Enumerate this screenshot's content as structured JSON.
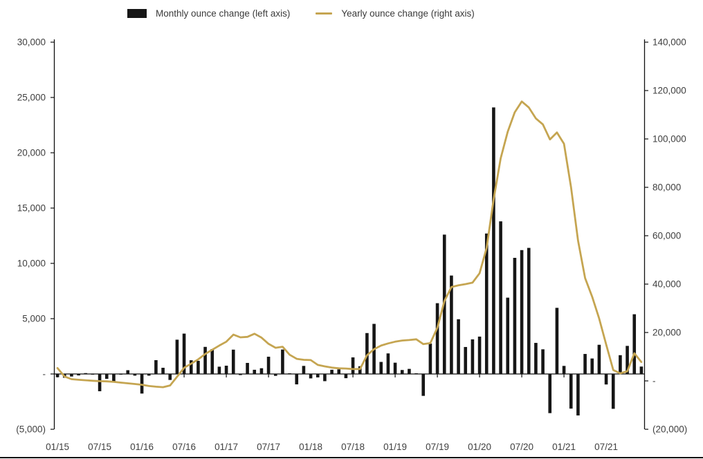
{
  "legend": {
    "monthly_label": "Monthly ounce change (left axis)",
    "yearly_label": "Yearly ounce change (right axis)"
  },
  "colors": {
    "bar": "#161616",
    "line": "#C5A551",
    "axis": "#0f0f0f",
    "text": "#3f3f3f",
    "background": "#ffffff"
  },
  "chart_data": {
    "type": "bar+line combo",
    "title": "",
    "grid": "off",
    "legend_position": "top",
    "categories": [
      "01/15",
      "02/15",
      "03/15",
      "04/15",
      "05/15",
      "06/15",
      "07/15",
      "08/15",
      "09/15",
      "10/15",
      "11/15",
      "12/15",
      "01/16",
      "02/16",
      "03/16",
      "04/16",
      "05/16",
      "06/16",
      "07/16",
      "08/16",
      "09/16",
      "10/16",
      "11/16",
      "12/16",
      "01/17",
      "02/17",
      "03/17",
      "04/17",
      "05/17",
      "06/17",
      "07/17",
      "08/17",
      "09/17",
      "10/17",
      "11/17",
      "12/17",
      "01/18",
      "02/18",
      "03/18",
      "04/18",
      "05/18",
      "06/18",
      "07/18",
      "08/18",
      "09/18",
      "10/18",
      "11/18",
      "12/18",
      "01/19",
      "02/19",
      "03/19",
      "04/19",
      "05/19",
      "06/19",
      "07/19",
      "08/19",
      "09/19",
      "10/19",
      "11/19",
      "12/19",
      "01/20",
      "02/20",
      "03/20",
      "04/20",
      "05/20",
      "06/20",
      "07/20",
      "08/20",
      "09/20",
      "10/20",
      "11/20",
      "12/20",
      "01/21",
      "02/21",
      "03/21",
      "04/21",
      "05/21",
      "06/21",
      "07/21",
      "08/21",
      "09/21",
      "10/21",
      "11/21",
      "12/21"
    ],
    "series": [
      {
        "name": "Monthly ounce change (left axis)",
        "type": "bar",
        "axis": "left",
        "values": [
          -290,
          -340,
          -230,
          -130,
          80,
          -60,
          -1560,
          -440,
          -750,
          -60,
          340,
          -150,
          -1770,
          -150,
          1250,
          560,
          -540,
          3100,
          3650,
          1240,
          1190,
          2450,
          2250,
          660,
          750,
          2200,
          -100,
          1000,
          380,
          520,
          1560,
          -170,
          2210,
          50,
          -940,
          730,
          -400,
          -310,
          -650,
          380,
          420,
          -380,
          1500,
          700,
          3700,
          4530,
          1090,
          1860,
          1020,
          360,
          460,
          60,
          -1980,
          2750,
          6400,
          12600,
          8900,
          4950,
          2440,
          3130,
          3380,
          12700,
          24100,
          13800,
          6900,
          10500,
          11200,
          11400,
          2810,
          2230,
          -3540,
          5980,
          730,
          -3130,
          -3750,
          1810,
          1400,
          2640,
          -950,
          -3150,
          1700,
          2540,
          5400,
          670
        ]
      },
      {
        "name": "Yearly ounce change (right axis)",
        "type": "line",
        "axis": "right",
        "values": [
          5300,
          1800,
          700,
          450,
          250,
          60,
          -100,
          -200,
          -400,
          -700,
          -1000,
          -1300,
          -1600,
          -2100,
          -2400,
          -2600,
          -1900,
          1700,
          5400,
          7100,
          8900,
          11100,
          12900,
          14600,
          16200,
          19100,
          18000,
          18200,
          19500,
          17900,
          15300,
          13700,
          14100,
          10800,
          9100,
          8700,
          8600,
          6600,
          6000,
          5500,
          5200,
          5100,
          4900,
          4900,
          10600,
          13100,
          14600,
          15500,
          16200,
          16700,
          16900,
          17200,
          15200,
          15600,
          22000,
          33000,
          38800,
          39500,
          40000,
          40600,
          44500,
          55000,
          75000,
          92000,
          103000,
          111000,
          115500,
          113000,
          108500,
          106000,
          99800,
          102700,
          98000,
          80000,
          58000,
          42500,
          34800,
          25800,
          15000,
          4500,
          3100,
          4000,
          11400,
          7800
        ]
      }
    ],
    "left_axis": {
      "min": -5000,
      "max": 30000,
      "step": 5000,
      "tick_labels": [
        "30,000",
        "25,000",
        "20,000",
        "15,000",
        "10,000",
        "5,000",
        "-",
        "(5,000)"
      ],
      "tick_values": [
        30000,
        25000,
        20000,
        15000,
        10000,
        5000,
        0,
        -5000
      ]
    },
    "right_axis": {
      "min": -20000,
      "max": 140000,
      "step": 20000,
      "tick_labels": [
        "140,000",
        "120,000",
        "100,000",
        "80,000",
        "60,000",
        "40,000",
        "20,000",
        "-",
        "(20,000)"
      ],
      "tick_values": [
        140000,
        120000,
        100000,
        80000,
        60000,
        40000,
        20000,
        0,
        -20000
      ]
    },
    "x_axis": {
      "tick_labels": [
        "01/15",
        "07/15",
        "01/16",
        "07/16",
        "01/17",
        "07/17",
        "01/18",
        "07/18",
        "01/19",
        "07/19",
        "01/20",
        "07/20",
        "01/21",
        "07/21"
      ],
      "tick_month_indices": [
        0,
        6,
        12,
        18,
        24,
        30,
        36,
        42,
        48,
        54,
        60,
        66,
        72,
        78
      ]
    }
  }
}
